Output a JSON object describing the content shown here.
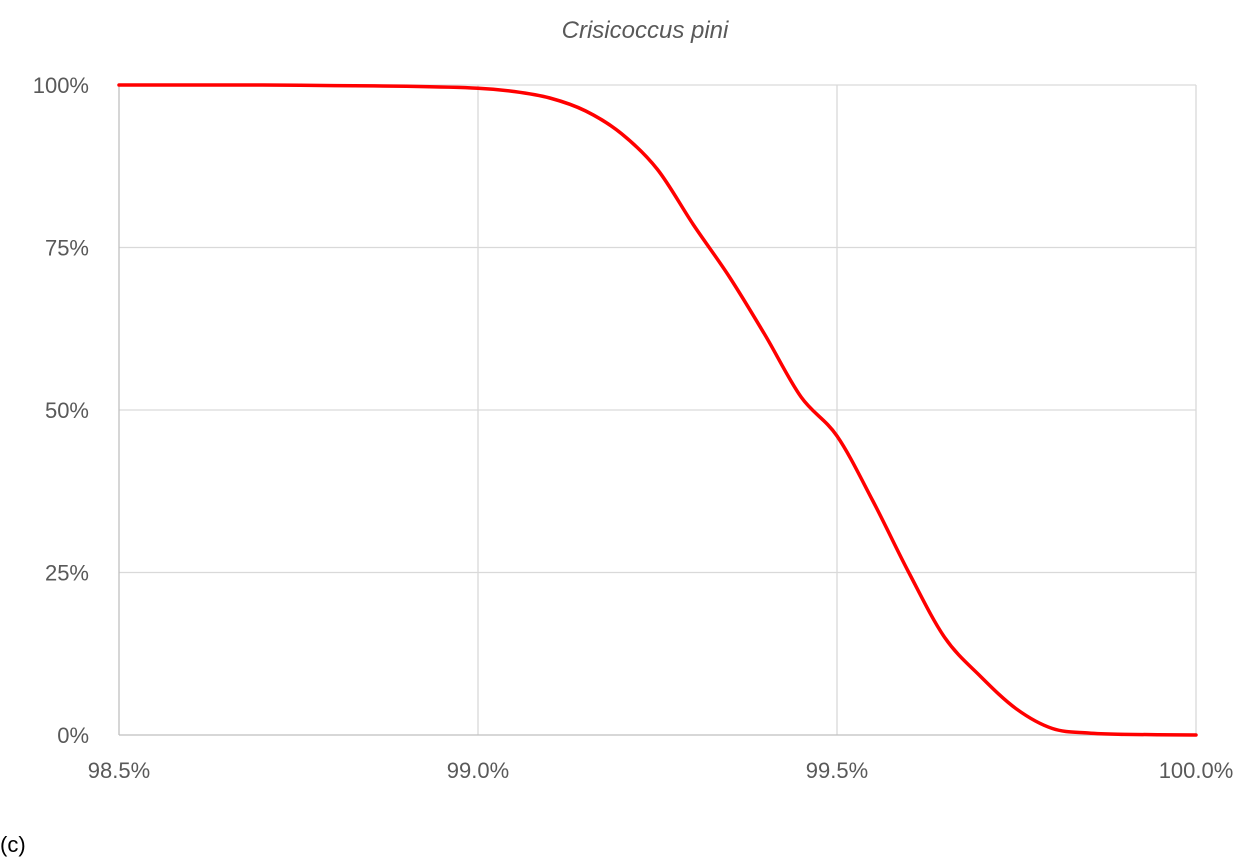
{
  "panel_label": "(c)",
  "chart_data": {
    "type": "line",
    "title": "Crisicoccus pini",
    "xlabel": "",
    "ylabel": "",
    "xlim": [
      0.985,
      1.0
    ],
    "ylim": [
      0,
      1
    ],
    "x_ticks": [
      0.985,
      0.99,
      0.995,
      1.0
    ],
    "x_tick_labels": [
      "98.5%",
      "99.0%",
      "99.5%",
      "100.0%"
    ],
    "y_ticks": [
      0,
      0.25,
      0.5,
      0.75,
      1.0
    ],
    "y_tick_labels": [
      "0%",
      "25%",
      "50%",
      "75%",
      "100%"
    ],
    "grid": true,
    "legend": "none",
    "series": [
      {
        "color": "#ff0000",
        "x": [
          0.985,
          0.986,
          0.987,
          0.988,
          0.989,
          0.99,
          0.9905,
          0.991,
          0.9915,
          0.992,
          0.9925,
          0.993,
          0.9935,
          0.994,
          0.9945,
          0.995,
          0.9955,
          0.996,
          0.9965,
          0.997,
          0.9975,
          0.998,
          0.9985,
          0.999,
          1.0
        ],
        "y": [
          1.0,
          1.0,
          1.0,
          0.999,
          0.998,
          0.995,
          0.99,
          0.98,
          0.96,
          0.925,
          0.87,
          0.785,
          0.705,
          0.615,
          0.52,
          0.46,
          0.36,
          0.25,
          0.15,
          0.09,
          0.04,
          0.01,
          0.003,
          0.001,
          0.0
        ]
      }
    ]
  }
}
